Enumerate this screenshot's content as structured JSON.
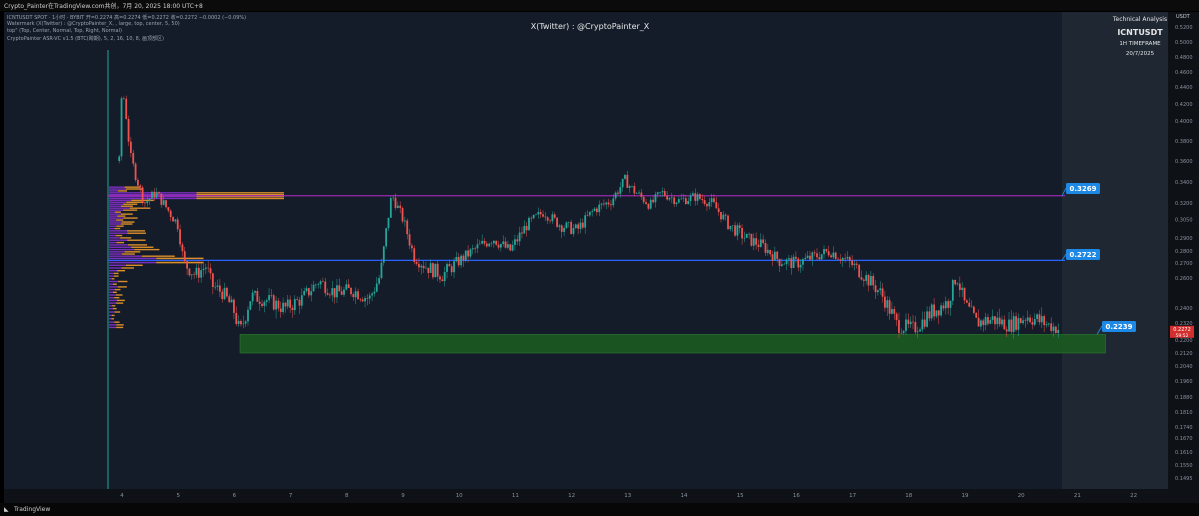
{
  "header": {
    "title": "Crypto_Painter在TradingView.com共创，7月 20, 2025 18:00 UTC+8"
  },
  "legend": {
    "line1": "ICNTUSDT SPOT · 1小时 · BYBIT  开=0.2274  高=0.2274  低=0.2272  收=0.2272  −0.0002 (−0.09%)",
    "line2": "Watermark (X(Twitter) : @CryptoPainter_X, , large, top, center, 5, 50)",
    "line3": "top\" (Top, Center, Normal, Top, Right, Normal)",
    "line4": "CryptoPainter ASR-VC v1.5 (BTC(跨期), 5, 2, 16, 10, 8, 画顶部区)"
  },
  "watermark": "X(Twitter) : @CryptoPainter_X",
  "analysis": {
    "heading": "Technical Analysis",
    "symbol": "ICNTUSDT",
    "timeframe": "1H TIMEFRAME",
    "date": "20/7/2025"
  },
  "footer": {
    "brand": "TradingView"
  },
  "chart_data": {
    "type": "candlestick",
    "currency": "USDT",
    "y_ticks": [
      0.52,
      0.5,
      0.48,
      0.46,
      0.44,
      0.42,
      0.4,
      0.38,
      0.36,
      0.34,
      0.32,
      0.305,
      0.29,
      0.28,
      0.27,
      0.26,
      0.24,
      0.232,
      0.22,
      0.212,
      0.204,
      0.196,
      0.188,
      0.181,
      0.174,
      0.167,
      0.161,
      0.155,
      0.1495
    ],
    "x_ticks": [
      "4",
      "5",
      "6",
      "7",
      "8",
      "9",
      "10",
      "11",
      "12",
      "13",
      "14",
      "15",
      "16",
      "17",
      "18",
      "19",
      "20",
      "21",
      "22"
    ],
    "levels": [
      {
        "name": "upper",
        "value": 0.3269,
        "label": "0.3269",
        "color": "#9c27b0"
      },
      {
        "name": "middle",
        "value": 0.2722,
        "label": "0.2722",
        "color": "#2962ff"
      },
      {
        "name": "lower",
        "value": 0.2239,
        "label": "0.2239",
        "color": "#2962ff"
      }
    ],
    "support_zone": {
      "from_day": 6.1,
      "to_day": 21.5,
      "low": 0.212,
      "high": 0.2239,
      "color": "#1b5e20"
    },
    "current_price": {
      "value": 0.2272,
      "label": "0.2272",
      "countdown": "59:52"
    },
    "price_path": [
      [
        3.95,
        0.36
      ],
      [
        4.0,
        0.44
      ],
      [
        4.05,
        0.42
      ],
      [
        4.1,
        0.39
      ],
      [
        4.15,
        0.365
      ],
      [
        4.25,
        0.345
      ],
      [
        4.4,
        0.32
      ],
      [
        4.6,
        0.33
      ],
      [
        4.8,
        0.315
      ],
      [
        5.0,
        0.3
      ],
      [
        5.1,
        0.27
      ],
      [
        5.3,
        0.262
      ],
      [
        5.5,
        0.268
      ],
      [
        5.6,
        0.255
      ],
      [
        5.8,
        0.25
      ],
      [
        6.0,
        0.238
      ],
      [
        6.1,
        0.226
      ],
      [
        6.3,
        0.248
      ],
      [
        6.6,
        0.245
      ],
      [
        6.9,
        0.24
      ],
      [
        7.2,
        0.246
      ],
      [
        7.5,
        0.258
      ],
      [
        7.8,
        0.25
      ],
      [
        8.1,
        0.252
      ],
      [
        8.4,
        0.246
      ],
      [
        8.6,
        0.262
      ],
      [
        8.8,
        0.328
      ],
      [
        9.0,
        0.305
      ],
      [
        9.2,
        0.275
      ],
      [
        9.4,
        0.268
      ],
      [
        9.7,
        0.262
      ],
      [
        10.0,
        0.272
      ],
      [
        10.3,
        0.282
      ],
      [
        10.6,
        0.29
      ],
      [
        10.9,
        0.28
      ],
      [
        11.2,
        0.3
      ],
      [
        11.5,
        0.312
      ],
      [
        11.8,
        0.3
      ],
      [
        12.1,
        0.296
      ],
      [
        12.4,
        0.314
      ],
      [
        12.7,
        0.322
      ],
      [
        12.95,
        0.342
      ],
      [
        13.1,
        0.332
      ],
      [
        13.4,
        0.318
      ],
      [
        13.6,
        0.33
      ],
      [
        13.9,
        0.322
      ],
      [
        14.2,
        0.326
      ],
      [
        14.5,
        0.32
      ],
      [
        14.8,
        0.3
      ],
      [
        15.1,
        0.29
      ],
      [
        15.4,
        0.284
      ],
      [
        15.7,
        0.272
      ],
      [
        16.0,
        0.27
      ],
      [
        16.3,
        0.275
      ],
      [
        16.6,
        0.28
      ],
      [
        16.9,
        0.272
      ],
      [
        17.2,
        0.262
      ],
      [
        17.5,
        0.25
      ],
      [
        17.8,
        0.23
      ],
      [
        18.1,
        0.228
      ],
      [
        18.4,
        0.238
      ],
      [
        18.7,
        0.244
      ],
      [
        18.85,
        0.262
      ],
      [
        19.0,
        0.242
      ],
      [
        19.2,
        0.232
      ],
      [
        19.5,
        0.234
      ],
      [
        19.8,
        0.23
      ],
      [
        20.1,
        0.236
      ],
      [
        20.4,
        0.232
      ],
      [
        20.7,
        0.2272
      ]
    ]
  }
}
